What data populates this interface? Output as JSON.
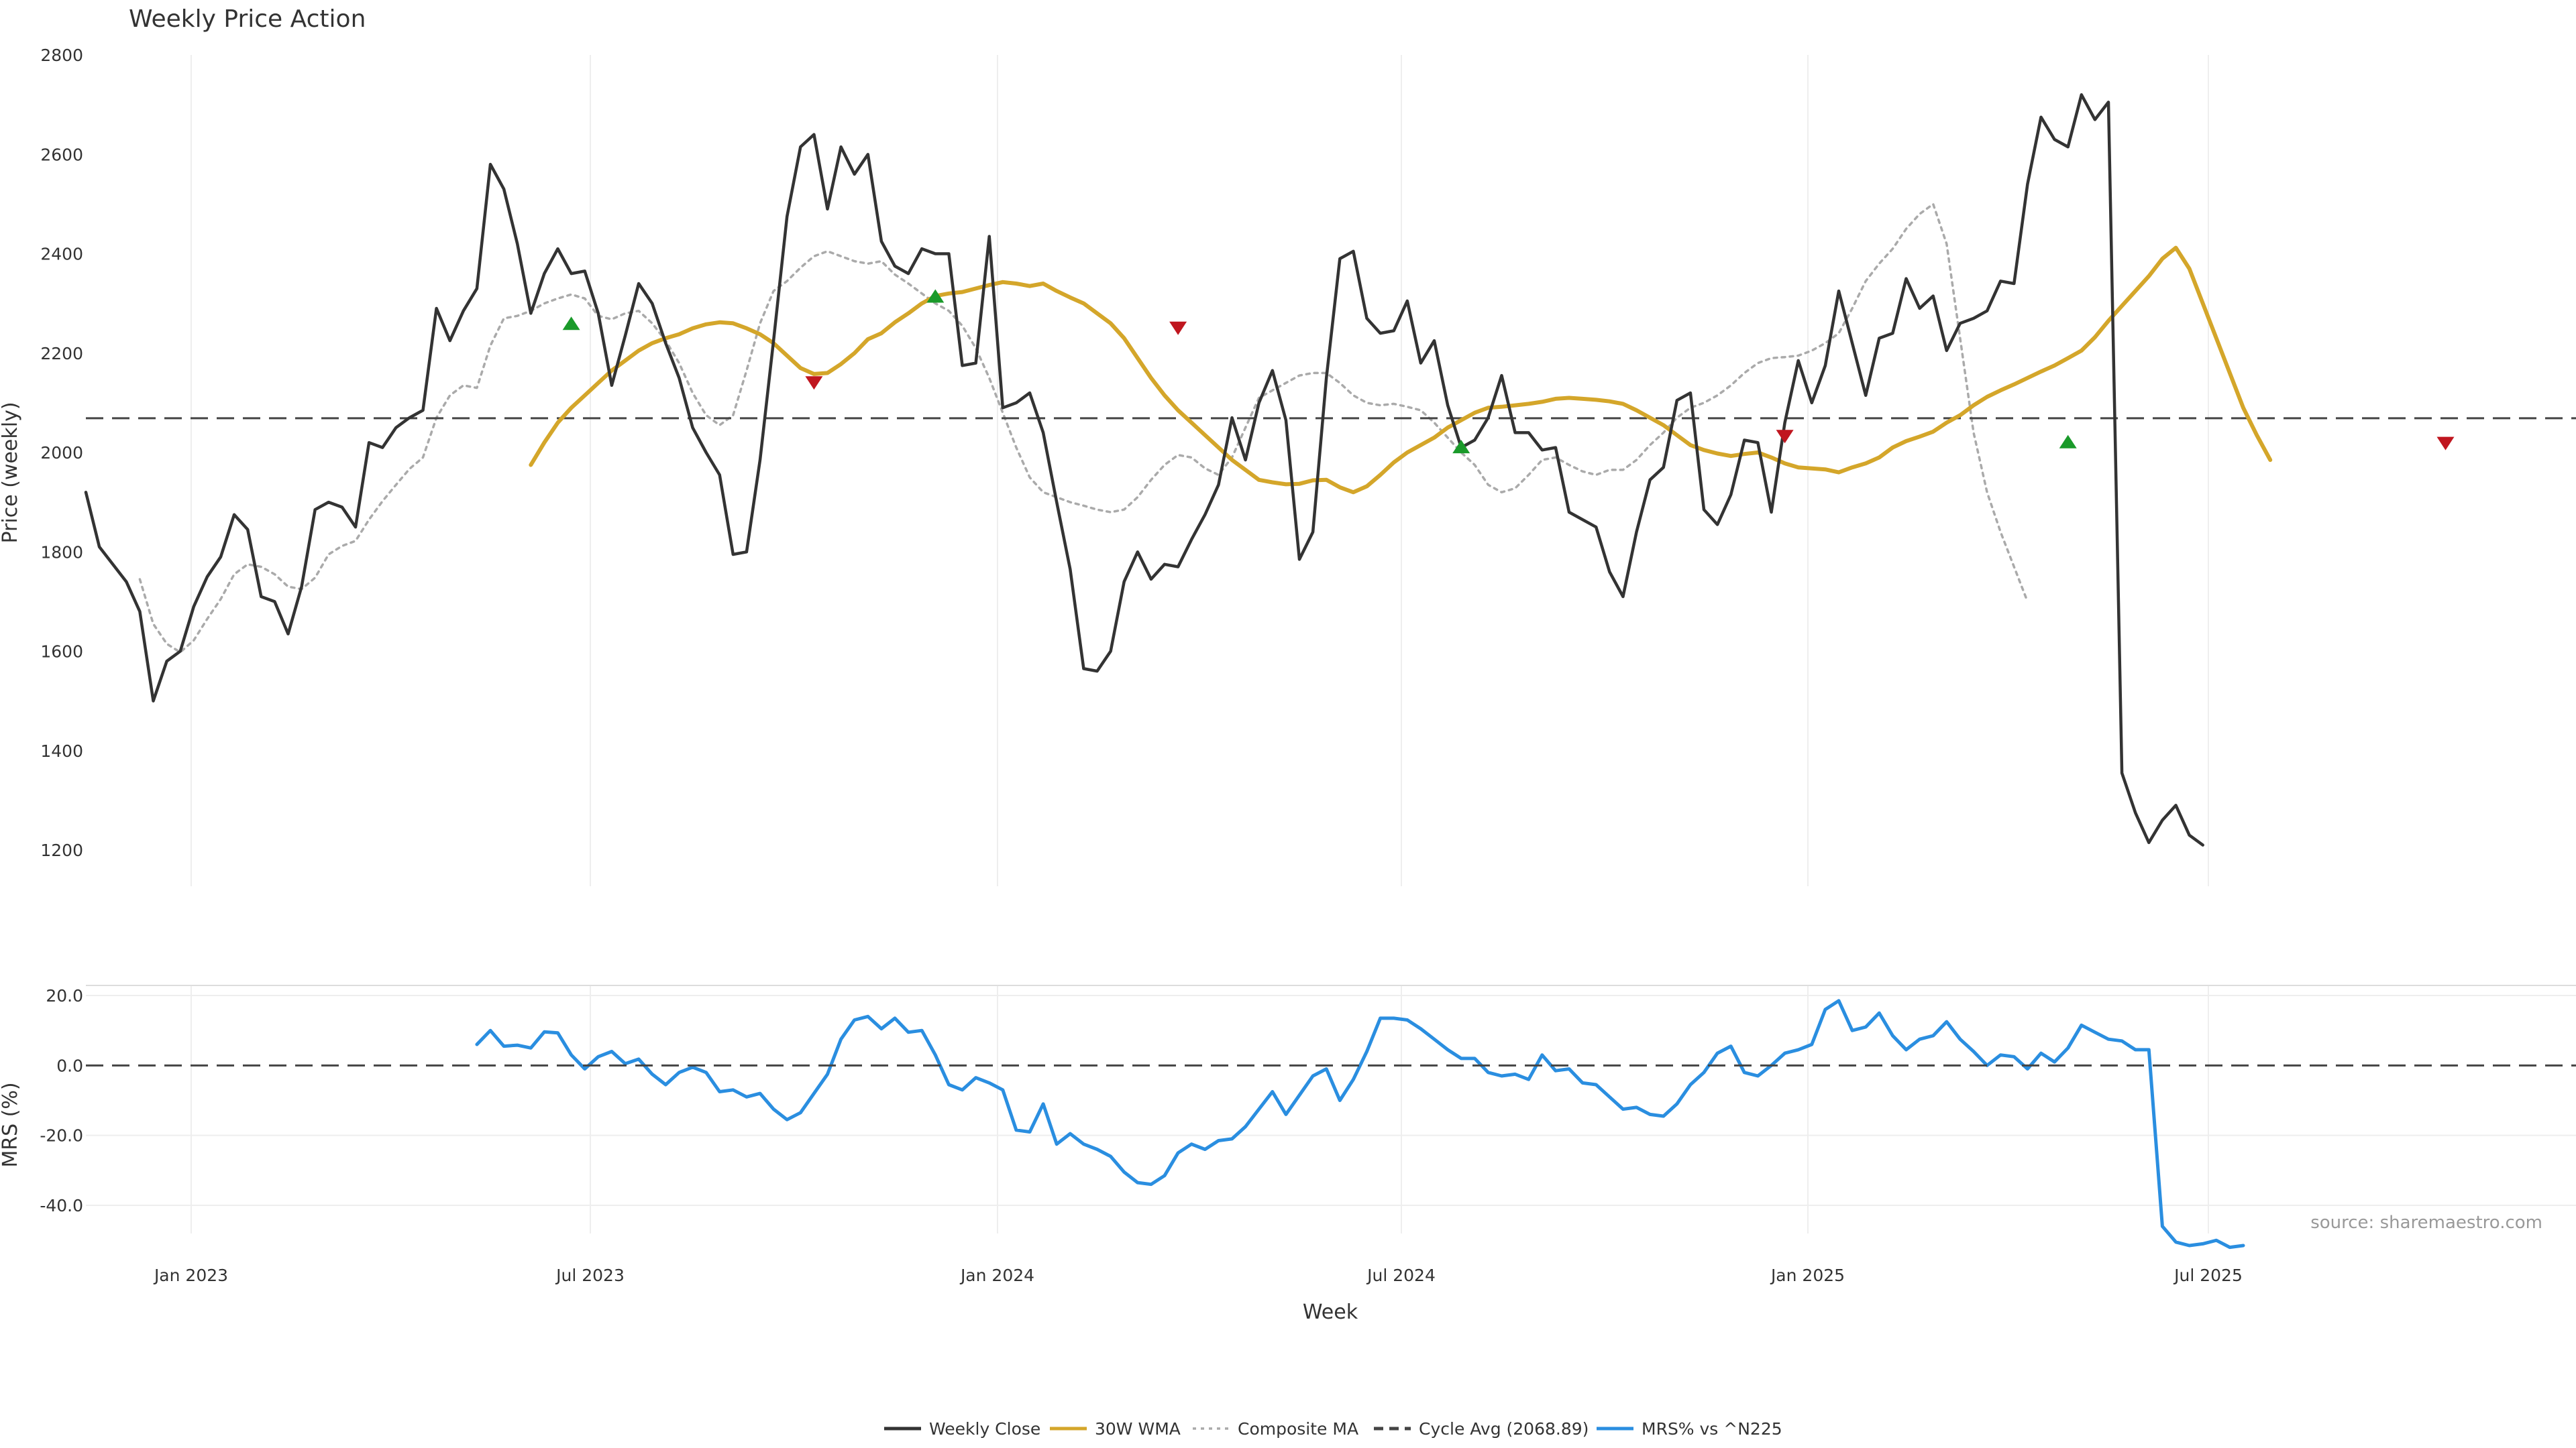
{
  "chart_data": {
    "type": "line",
    "title": "Weekly Price Action",
    "xlabel": "Week",
    "x_ticks": [
      "Jan 2023",
      "Jul 2023",
      "Jan 2024",
      "Jul 2024",
      "Jan 2025",
      "Jul 2025"
    ],
    "source": "source: sharemaestro.com",
    "price_panel": {
      "ylabel": "Price (weekly)",
      "ylim": [
        1120,
        2800
      ],
      "y_ticks": [
        "1200",
        "1400",
        "1600",
        "1800",
        "2000",
        "2200",
        "2400",
        "2600",
        "2800"
      ],
      "x": [
        0,
        1,
        2,
        3,
        4,
        5,
        6,
        7,
        8,
        9,
        10,
        11,
        12,
        13,
        14,
        15,
        16,
        17,
        18,
        19,
        20,
        21,
        22,
        23,
        24,
        25,
        26,
        27,
        28,
        29,
        30,
        31,
        32,
        33,
        34,
        35,
        36,
        37,
        38,
        39,
        40,
        41,
        42,
        43,
        44,
        45,
        46,
        47,
        48,
        49,
        50,
        51,
        52,
        53,
        54,
        55,
        56,
        57,
        58,
        59,
        60,
        61,
        62,
        63,
        64,
        65,
        66,
        67,
        68,
        69,
        70,
        71,
        72,
        73,
        74,
        75,
        76,
        77,
        78,
        79,
        80,
        81,
        82,
        83,
        84,
        85,
        86,
        87,
        88,
        89,
        90,
        91,
        92,
        93,
        94,
        95,
        96,
        97,
        98,
        99,
        100,
        101,
        102,
        103,
        104,
        105,
        106,
        107,
        108,
        109,
        110,
        111,
        112,
        113,
        114,
        115,
        116,
        117,
        118,
        119,
        120,
        121,
        122,
        123,
        124,
        125,
        126,
        127,
        128,
        129,
        130,
        131,
        132,
        133,
        134,
        135,
        136,
        137,
        138,
        139,
        140,
        141,
        142,
        143,
        144,
        145,
        146,
        147,
        148,
        149,
        150,
        151,
        152,
        153,
        154,
        155,
        156,
        157,
        158,
        159,
        160,
        161,
        162,
        163,
        164,
        165,
        166,
        167,
        168,
        169,
        170,
        171,
        172,
        173,
        174,
        175,
        176,
        177,
        178,
        179
      ],
      "series": [
        {
          "name": "Weekly Close",
          "color": "#333333",
          "style": "solid",
          "start": 0,
          "values": [
            1920,
            1810,
            1775,
            1740,
            1680,
            1500,
            1580,
            1600,
            1690,
            1750,
            1790,
            1875,
            1845,
            1710,
            1700,
            1635,
            1730,
            1885,
            1900,
            1890,
            1850,
            2020,
            2010,
            2050,
            2070,
            2085,
            2290,
            2225,
            2285,
            2330,
            2580,
            2530,
            2420,
            2280,
            2360,
            2410,
            2360,
            2365,
            2280,
            2135,
            2235,
            2340,
            2300,
            2220,
            2150,
            2050,
            2000,
            1955,
            1795,
            1800,
            1985,
            2225,
            2475,
            2615,
            2640,
            2490,
            2615,
            2560,
            2600,
            2425,
            2375,
            2360,
            2410,
            2400,
            2400,
            2175,
            2180,
            2435,
            2090,
            2100,
            2120,
            2040,
            1900,
            1765,
            1565,
            1560,
            1600,
            1740,
            1800,
            1745,
            1775,
            1770,
            1825,
            1875,
            1935,
            2070,
            1985,
            2100,
            2165,
            2065,
            1785,
            1840,
            2150,
            2390,
            2405,
            2270,
            2240,
            2245,
            2305,
            2180,
            2225,
            2095,
            2010,
            2025,
            2070,
            2155,
            2040,
            2040,
            2005,
            2010,
            1880,
            1865,
            1850,
            1760,
            1710,
            1840,
            1945,
            1970,
            2105,
            2120,
            1885,
            1855,
            1915,
            2025,
            2020,
            1880,
            2060,
            2185,
            2100,
            2175,
            2325,
            2220,
            2115,
            2230,
            2240,
            2350,
            2290,
            2315,
            2205,
            2260,
            2270,
            2285,
            2345,
            2340,
            2540,
            2675,
            2630,
            2615,
            2720,
            2670,
            2705,
            1355,
            1275,
            1215,
            1260,
            1290,
            1230,
            1210
          ]
        },
        {
          "name": "30W WMA",
          "color": "#d4a62a",
          "style": "solid",
          "start": 33,
          "values": [
            1975,
            2020,
            2060,
            2090,
            2115,
            2140,
            2165,
            2185,
            2205,
            2220,
            2230,
            2238,
            2250,
            2258,
            2262,
            2260,
            2250,
            2238,
            2220,
            2195,
            2170,
            2158,
            2160,
            2178,
            2200,
            2228,
            2240,
            2262,
            2280,
            2300,
            2315,
            2320,
            2323,
            2330,
            2337,
            2343,
            2340,
            2335,
            2340,
            2325,
            2312,
            2300,
            2280,
            2260,
            2230,
            2190,
            2150,
            2115,
            2085,
            2060,
            2035,
            2010,
            1985,
            1965,
            1945,
            1940,
            1936,
            1937,
            1944,
            1945,
            1930,
            1920,
            1932,
            1955,
            1980,
            2000,
            2015,
            2030,
            2050,
            2065,
            2080,
            2090,
            2092,
            2095,
            2098,
            2102,
            2108,
            2110,
            2108,
            2106,
            2103,
            2098,
            2085,
            2070,
            2055,
            2035,
            2015,
            2005,
            1998,
            1993,
            1997,
            2000,
            1990,
            1978,
            1970,
            1968,
            1966,
            1960,
            1970,
            1978,
            1990,
            2010,
            2023,
            2032,
            2042,
            2060,
            2075,
            2095,
            2112,
            2125,
            2137,
            2150,
            2163,
            2175,
            2190,
            2205,
            2232,
            2265,
            2295,
            2325,
            2355,
            2390,
            2412,
            2370,
            2300,
            2230,
            2160,
            2090,
            2035,
            1985
          ]
        },
        {
          "name": "Composite MA",
          "color": "#aaaaaa",
          "style": "dotted",
          "start": 4,
          "values": [
            1745,
            1655,
            1615,
            1598,
            1622,
            1665,
            1705,
            1755,
            1775,
            1770,
            1755,
            1730,
            1725,
            1748,
            1795,
            1812,
            1822,
            1865,
            1902,
            1935,
            1967,
            1990,
            2070,
            2115,
            2135,
            2130,
            2215,
            2270,
            2275,
            2285,
            2300,
            2310,
            2318,
            2310,
            2275,
            2268,
            2280,
            2285,
            2260,
            2225,
            2180,
            2120,
            2075,
            2055,
            2075,
            2165,
            2260,
            2325,
            2345,
            2372,
            2395,
            2405,
            2395,
            2385,
            2380,
            2385,
            2358,
            2340,
            2320,
            2300,
            2285,
            2255,
            2210,
            2150,
            2080,
            2010,
            1950,
            1920,
            1910,
            1900,
            1893,
            1885,
            1880,
            1885,
            1910,
            1945,
            1975,
            1995,
            1990,
            1968,
            1955,
            1990,
            2050,
            2110,
            2125,
            2140,
            2155,
            2160,
            2160,
            2140,
            2115,
            2100,
            2095,
            2098,
            2092,
            2085,
            2060,
            2030,
            2000,
            1975,
            1935,
            1920,
            1928,
            1955,
            1985,
            1990,
            1975,
            1962,
            1955,
            1965,
            1965,
            1985,
            2015,
            2040,
            2070,
            2090,
            2100,
            2115,
            2135,
            2160,
            2180,
            2190,
            2192,
            2195,
            2205,
            2220,
            2240,
            2290,
            2345,
            2380,
            2410,
            2450,
            2480,
            2500,
            2420,
            2230,
            2040,
            1920,
            1840,
            1770,
            1700
          ]
        },
        {
          "name": "Cycle Avg (2068.89)",
          "color": "#444444",
          "style": "dashed",
          "constant": 2068.89
        }
      ],
      "buy_markers": [
        {
          "x": 36,
          "y": 2260
        },
        {
          "x": 63,
          "y": 2315
        },
        {
          "x": 102,
          "y": 2012
        },
        {
          "x": 147,
          "y": 2022
        }
      ],
      "sell_markers": [
        {
          "x": 54,
          "y": 2140
        },
        {
          "x": 81,
          "y": 2250
        },
        {
          "x": 126,
          "y": 2032
        },
        {
          "x": 175,
          "y": 2018
        }
      ]
    },
    "mrs_panel": {
      "ylabel": "MRS (%)",
      "ylim": [
        -50,
        20
      ],
      "y_ticks": [
        "20.0",
        "0.0",
        "-20.0",
        "-40.0"
      ],
      "series": [
        {
          "name": "MRS% vs ^N225",
          "color": "#2a8ee0",
          "start": 29,
          "values": [
            6,
            10,
            5.5,
            5.8,
            5,
            9.6,
            9.3,
            3,
            -1,
            2.5,
            4,
            0.5,
            1.8,
            -2.5,
            -5.5,
            -2,
            -0.5,
            -2,
            -7.5,
            -7,
            -9,
            -8,
            -12.5,
            -15.5,
            -13.5,
            -8,
            -2.5,
            7.5,
            13,
            14,
            10.5,
            13.5,
            9.5,
            10,
            3,
            -5.5,
            -7,
            -3.5,
            -5,
            -7,
            -18.5,
            -19,
            -11,
            -22.5,
            -19.5,
            -22.5,
            -24,
            -26,
            -30.5,
            -33.5,
            -34,
            -31.5,
            -25,
            -22.5,
            -24,
            -21.5,
            -21,
            -17.5,
            -12.5,
            -7.5,
            -14,
            -8.5,
            -3,
            -1,
            -10,
            -4,
            4,
            13.5,
            13.5,
            13,
            10.5,
            7.5,
            4.5,
            2,
            2,
            -2,
            -3,
            -2.5,
            -4,
            3,
            -1.5,
            -1,
            -5,
            -5.5,
            -9,
            -12.5,
            -12,
            -14,
            -14.5,
            -11,
            -5.5,
            -2,
            3.5,
            5.5,
            -2,
            -3,
            0,
            3.5,
            4.5,
            6,
            16,
            18.5,
            10,
            11,
            15,
            8.5,
            4.5,
            7.5,
            8.5,
            12.5,
            7.5,
            4,
            0,
            3,
            2.5,
            -1,
            3.5,
            1,
            5,
            11.5,
            9.5,
            7.5,
            7,
            4.5,
            4.5,
            -46,
            -50.5,
            -51.5,
            -51,
            -50,
            -52,
            -51.5
          ]
        },
        {
          "name": "MRS zero",
          "color": "#444444",
          "style": "dashed",
          "constant": 0
        }
      ]
    },
    "legend": [
      {
        "label": "Weekly Close",
        "color": "#333333",
        "style": "solid"
      },
      {
        "label": "30W WMA",
        "color": "#d4a62a",
        "style": "solid"
      },
      {
        "label": "Composite MA",
        "color": "#aaaaaa",
        "style": "dotted"
      },
      {
        "label": "Cycle Avg (2068.89)",
        "color": "#444444",
        "style": "dashed"
      },
      {
        "label": "MRS% vs ^N225",
        "color": "#2a8ee0",
        "style": "solid"
      }
    ],
    "marker_colors": {
      "buy": "#1a9a2a",
      "sell": "#c0161f"
    },
    "grid": true
  }
}
